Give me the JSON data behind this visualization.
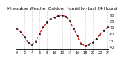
{
  "title": "Milwaukee Weather Outdoor Humidity (Last 24 Hours)",
  "x": [
    0,
    1,
    2,
    3,
    4,
    5,
    6,
    7,
    8,
    9,
    10,
    11,
    12,
    13,
    14,
    15,
    16,
    17,
    18,
    19,
    20,
    21,
    22,
    23,
    24
  ],
  "y": [
    68,
    63,
    55,
    47,
    42,
    48,
    60,
    70,
    78,
    83,
    86,
    88,
    89,
    87,
    80,
    68,
    56,
    45,
    41,
    43,
    47,
    52,
    59,
    65,
    70
  ],
  "y_ticks": [
    40,
    50,
    60,
    70,
    80,
    90
  ],
  "y_min": 36,
  "y_max": 96,
  "x_ticks": [
    0,
    2,
    4,
    6,
    8,
    10,
    12,
    14,
    16,
    18,
    20,
    22,
    24
  ],
  "x_tick_labels": [
    "0",
    "2",
    "4",
    "6",
    "8",
    "10",
    "12",
    "14",
    "16",
    "18",
    "20",
    "22",
    "24"
  ],
  "line_color": "#dd0000",
  "marker_color": "#111111",
  "bg_color": "#ffffff",
  "plot_bg_color": "#ffffff",
  "grid_color": "#999999",
  "title_fontsize": 4.2,
  "tick_fontsize": 3.5,
  "line_width": 0.8,
  "marker_size": 1.8,
  "vgrid_positions": [
    0,
    2,
    4,
    6,
    8,
    10,
    12,
    14,
    16,
    18,
    20,
    22,
    24
  ]
}
